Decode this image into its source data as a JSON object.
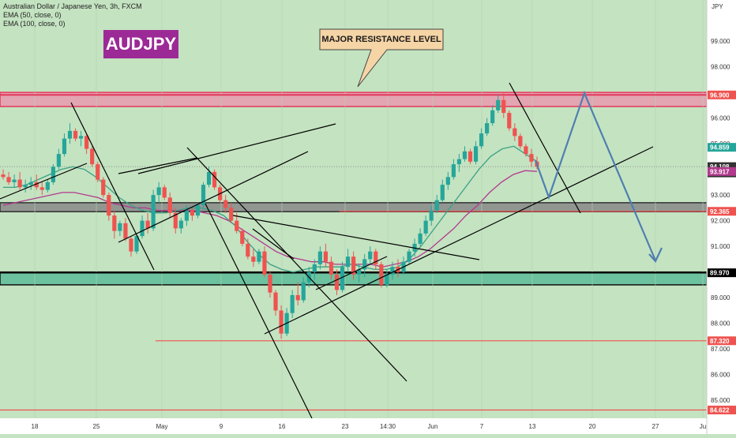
{
  "header": {
    "title": "Australian Dollar / Japanese Yen, 3h, FXCM",
    "ema50": "EMA (50, close, 0)",
    "ema100": "EMA (100, close, 0)"
  },
  "symbol_badge": "AUDJPY",
  "callout": "MAJOR RESISTANCE LEVEL",
  "currency": "JPY",
  "colors": {
    "background": "#c4e3c1",
    "up_candle": "#26a69a",
    "down_candle": "#ef5350",
    "ema50": "#3aa286",
    "ema100": "#b23a8e",
    "resistance_zone": "#e89aae",
    "support_zone": "#5dbb98",
    "mid_zone": "#888888",
    "projection": "#4f7fb0",
    "badge": "#9c2a96"
  },
  "chart_data": {
    "type": "candlestick",
    "ylim": [
      84.3,
      100.6
    ],
    "y_ticks": [
      "99.000",
      "98.000",
      "96.000",
      "95.000",
      "93.000",
      "92.000",
      "91.000",
      "89.000",
      "88.000",
      "87.000",
      "86.000",
      "85.000"
    ],
    "x_ticks": [
      "18",
      "25",
      "May",
      "9",
      "16",
      "23",
      "14:30",
      "Jun",
      "7",
      "13",
      "20",
      "27",
      "Ju"
    ],
    "price_labels": [
      {
        "text": "96.900",
        "value": 96.9,
        "color": "#ef5350"
      },
      {
        "text": "94.859",
        "value": 94.859,
        "color": "#26a69a"
      },
      {
        "text": "94.108",
        "value": 94.108,
        "color": "#333333",
        "sub": "24:46"
      },
      {
        "text": "93.917",
        "value": 93.917,
        "color": "#b23a8e"
      },
      {
        "text": "92.365",
        "value": 92.365,
        "color": "#ef5350"
      },
      {
        "text": "89.970",
        "value": 89.97,
        "color": "#000000"
      },
      {
        "text": "87.320",
        "value": 87.32,
        "color": "#ef5350"
      },
      {
        "text": "84.622",
        "value": 84.622,
        "color": "#ef5350"
      }
    ],
    "zones": [
      {
        "name": "major-resistance",
        "top": 97.0,
        "bottom": 96.45
      },
      {
        "name": "mid-zone",
        "top": 92.7,
        "bottom": 92.35
      },
      {
        "name": "support-zone",
        "top": 90.0,
        "bottom": 89.5
      }
    ],
    "hlines": [
      {
        "value": 92.365,
        "x0": 0.48,
        "color": "#ef5350"
      },
      {
        "value": 87.32,
        "x0": 0.22,
        "color": "#ef5350"
      },
      {
        "value": 84.622,
        "x0": 0.0,
        "color": "#ef5350"
      }
    ],
    "bars": [
      [
        93.8,
        94.0,
        93.6,
        93.7
      ],
      [
        93.7,
        93.9,
        93.4,
        93.5
      ],
      [
        93.5,
        93.8,
        93.3,
        93.6
      ],
      [
        93.6,
        93.9,
        93.2,
        93.3
      ],
      [
        93.3,
        93.6,
        93.1,
        93.4
      ],
      [
        93.4,
        93.7,
        93.2,
        93.5
      ],
      [
        93.5,
        93.8,
        93.2,
        93.3
      ],
      [
        93.3,
        93.5,
        93.0,
        93.2
      ],
      [
        93.2,
        93.6,
        93.1,
        93.5
      ],
      [
        93.5,
        94.2,
        93.4,
        94.1
      ],
      [
        94.1,
        94.8,
        94.0,
        94.6
      ],
      [
        94.6,
        95.4,
        94.5,
        95.2
      ],
      [
        95.2,
        95.8,
        95.0,
        95.5
      ],
      [
        95.5,
        95.6,
        95.1,
        95.2
      ],
      [
        95.2,
        95.5,
        94.9,
        95.3
      ],
      [
        95.3,
        95.4,
        94.6,
        94.8
      ],
      [
        94.8,
        94.9,
        94.1,
        94.2
      ],
      [
        94.2,
        94.3,
        93.5,
        93.6
      ],
      [
        93.6,
        93.7,
        92.9,
        93.0
      ],
      [
        93.0,
        93.1,
        92.0,
        92.2
      ],
      [
        92.2,
        92.4,
        91.3,
        91.6
      ],
      [
        91.6,
        92.0,
        91.4,
        91.9
      ],
      [
        91.9,
        92.1,
        91.2,
        91.3
      ],
      [
        91.3,
        91.4,
        90.6,
        90.8
      ],
      [
        90.8,
        91.5,
        90.7,
        91.4
      ],
      [
        91.4,
        92.2,
        91.3,
        92.0
      ],
      [
        92.0,
        92.3,
        91.5,
        91.7
      ],
      [
        91.7,
        93.2,
        91.6,
        93.0
      ],
      [
        93.0,
        93.5,
        92.7,
        93.3
      ],
      [
        93.3,
        93.4,
        92.8,
        92.9
      ],
      [
        92.9,
        93.1,
        92.1,
        92.3
      ],
      [
        92.3,
        92.5,
        91.5,
        91.7
      ],
      [
        91.7,
        92.1,
        91.5,
        92.0
      ],
      [
        92.0,
        92.6,
        91.8,
        92.4
      ],
      [
        92.4,
        92.5,
        92.0,
        92.2
      ],
      [
        92.2,
        92.7,
        92.1,
        92.6
      ],
      [
        92.6,
        93.5,
        92.5,
        93.4
      ],
      [
        93.4,
        94.1,
        93.3,
        93.9
      ],
      [
        93.9,
        94.0,
        93.2,
        93.3
      ],
      [
        93.3,
        93.4,
        92.7,
        92.8
      ],
      [
        92.8,
        93.0,
        92.3,
        92.5
      ],
      [
        92.5,
        92.7,
        91.9,
        92.0
      ],
      [
        92.0,
        92.3,
        91.5,
        91.6
      ],
      [
        91.6,
        91.7,
        91.0,
        91.1
      ],
      [
        91.1,
        91.3,
        90.5,
        90.6
      ],
      [
        90.6,
        90.9,
        90.2,
        90.4
      ],
      [
        90.4,
        90.9,
        90.3,
        90.8
      ],
      [
        90.8,
        91.0,
        89.8,
        89.9
      ],
      [
        89.9,
        90.0,
        89.0,
        89.2
      ],
      [
        89.2,
        89.3,
        88.3,
        88.5
      ],
      [
        88.5,
        88.7,
        87.4,
        87.6
      ],
      [
        87.6,
        88.6,
        87.5,
        88.4
      ],
      [
        88.4,
        89.3,
        88.2,
        89.1
      ],
      [
        89.1,
        89.6,
        88.7,
        88.9
      ],
      [
        88.9,
        89.8,
        88.8,
        89.6
      ],
      [
        89.6,
        90.2,
        89.4,
        90.0
      ],
      [
        90.0,
        90.5,
        89.7,
        90.3
      ],
      [
        90.3,
        91.0,
        90.1,
        90.8
      ],
      [
        90.8,
        91.1,
        90.2,
        90.4
      ],
      [
        90.4,
        90.6,
        89.7,
        89.9
      ],
      [
        89.9,
        90.1,
        89.1,
        89.3
      ],
      [
        89.3,
        90.4,
        89.2,
        90.2
      ],
      [
        90.2,
        90.9,
        90.0,
        90.6
      ],
      [
        90.6,
        90.8,
        89.7,
        89.9
      ],
      [
        89.9,
        90.3,
        89.6,
        90.1
      ],
      [
        90.1,
        90.7,
        89.8,
        90.5
      ],
      [
        90.5,
        91.0,
        90.3,
        90.8
      ],
      [
        90.8,
        90.9,
        90.1,
        90.3
      ],
      [
        90.3,
        90.4,
        89.4,
        89.5
      ],
      [
        89.5,
        90.1,
        89.4,
        89.9
      ],
      [
        89.9,
        90.4,
        89.7,
        90.2
      ],
      [
        90.2,
        90.5,
        89.8,
        90.0
      ],
      [
        90.0,
        90.6,
        89.9,
        90.4
      ],
      [
        90.4,
        90.9,
        90.3,
        90.8
      ],
      [
        90.8,
        91.3,
        90.6,
        91.1
      ],
      [
        91.1,
        91.7,
        91.0,
        91.5
      ],
      [
        91.5,
        92.2,
        91.4,
        92.0
      ],
      [
        92.0,
        92.6,
        91.8,
        92.4
      ],
      [
        92.4,
        93.0,
        92.3,
        92.8
      ],
      [
        92.8,
        93.6,
        92.7,
        93.4
      ],
      [
        93.4,
        93.9,
        93.2,
        93.7
      ],
      [
        93.7,
        94.4,
        93.6,
        94.2
      ],
      [
        94.2,
        94.6,
        93.9,
        94.4
      ],
      [
        94.4,
        94.9,
        94.3,
        94.7
      ],
      [
        94.7,
        94.8,
        94.2,
        94.3
      ],
      [
        94.3,
        95.1,
        94.2,
        94.9
      ],
      [
        94.9,
        95.6,
        94.8,
        95.4
      ],
      [
        95.4,
        96.0,
        95.3,
        95.8
      ],
      [
        95.8,
        96.5,
        95.7,
        96.3
      ],
      [
        96.3,
        96.9,
        96.2,
        96.7
      ],
      [
        96.7,
        97.0,
        96.0,
        96.2
      ],
      [
        96.2,
        96.3,
        95.5,
        95.6
      ],
      [
        95.6,
        95.8,
        95.1,
        95.3
      ],
      [
        95.3,
        95.4,
        94.8,
        94.9
      ],
      [
        94.9,
        95.0,
        94.5,
        94.6
      ],
      [
        94.6,
        94.8,
        94.1,
        94.3
      ],
      [
        94.3,
        94.5,
        94.0,
        94.1
      ]
    ],
    "ema50": [
      93.3,
      93.3,
      93.4,
      93.6,
      93.8,
      94.0,
      94.1,
      94.0,
      93.7,
      93.3,
      92.9,
      92.6,
      92.4,
      92.3,
      92.3,
      92.4,
      92.5,
      92.5,
      92.4,
      92.2,
      91.8,
      91.2,
      90.7,
      90.3,
      90.1,
      90.0,
      90.1,
      90.2,
      90.2,
      90.2,
      90.3,
      90.2,
      90.1,
      90.1,
      90.2,
      90.5,
      91.0,
      91.6,
      92.2,
      92.8,
      93.4,
      94.0,
      94.5,
      94.8,
      94.9,
      94.6,
      94.3
    ],
    "ema100": [
      92.6,
      92.7,
      92.8,
      92.9,
      93.0,
      93.1,
      93.1,
      93.0,
      92.9,
      92.7,
      92.6,
      92.5,
      92.5,
      92.4,
      92.4,
      92.4,
      92.4,
      92.3,
      92.2,
      92.0,
      91.7,
      91.4,
      91.1,
      90.8,
      90.6,
      90.5,
      90.4,
      90.4,
      90.3,
      90.3,
      90.3,
      90.3,
      90.2,
      90.3,
      90.4,
      90.6,
      90.9,
      91.3,
      91.7,
      92.2,
      92.6,
      93.1,
      93.5,
      93.8,
      93.95,
      93.92
    ]
  }
}
